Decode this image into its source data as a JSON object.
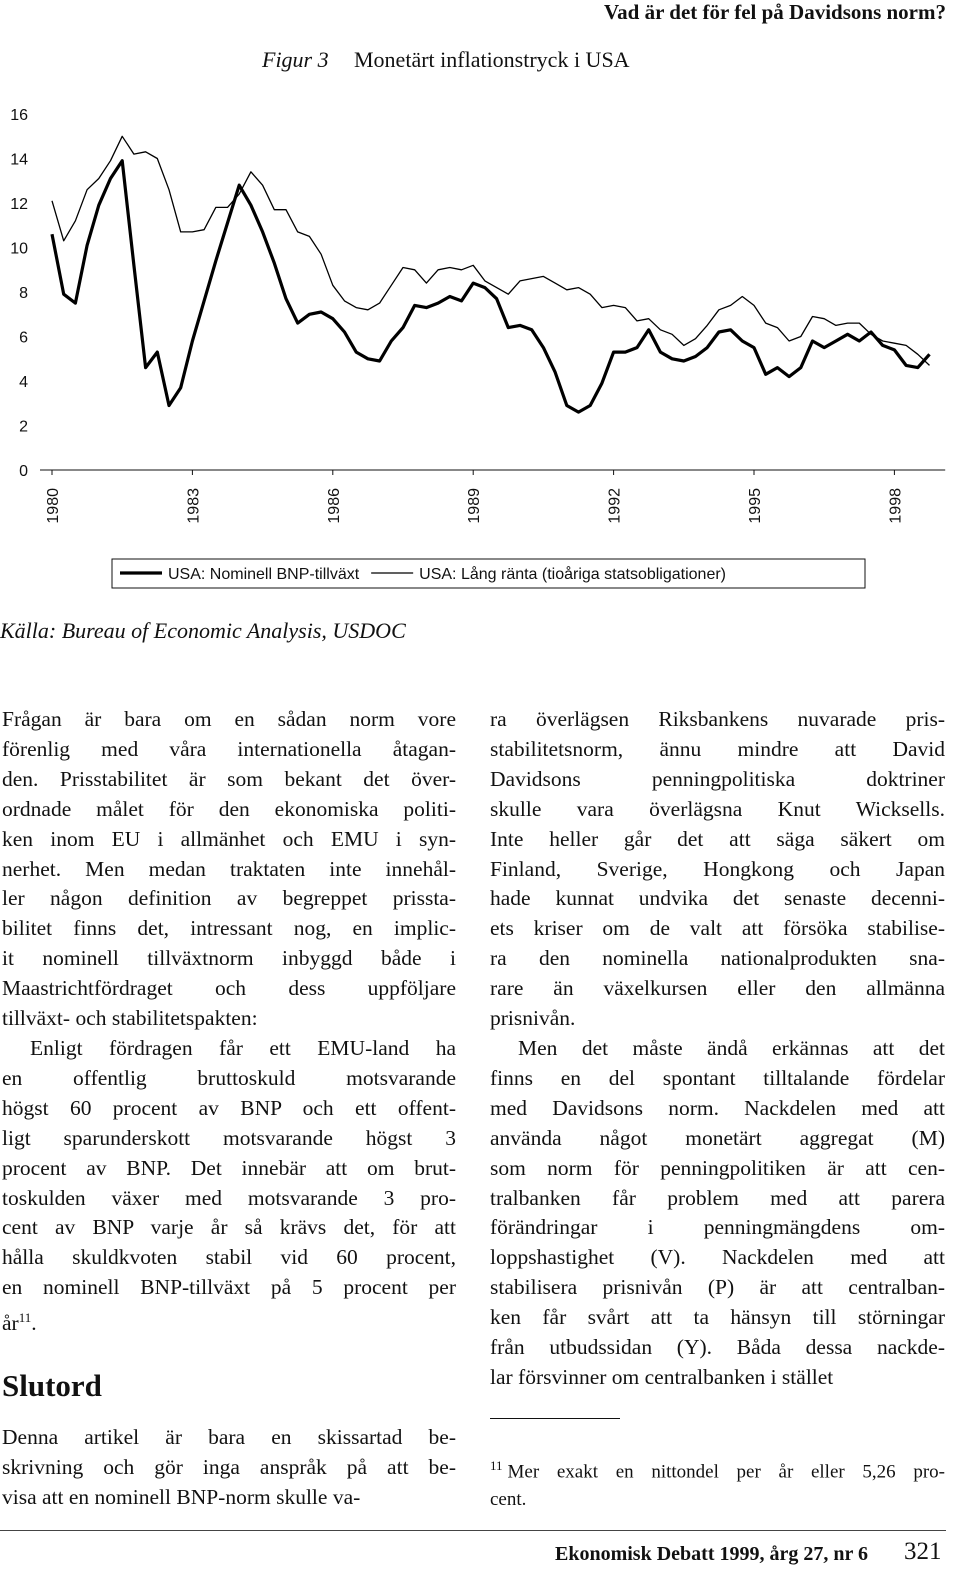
{
  "header": {
    "running_title": "Vad är det för fel på Davidsons norm?",
    "footer_journal": "Ekonomisk Debatt 1999, årg 27, nr 6",
    "page_number": "321"
  },
  "figure": {
    "label": "Figur 3",
    "source": "Källa: Bureau of Economic Analysis, USDOC"
  },
  "chart_data": {
    "type": "line",
    "title": "Monetärt inflationstryck i USA",
    "x": [
      1980,
      1980.25,
      1980.5,
      1980.75,
      1981,
      1981.25,
      1981.5,
      1981.75,
      1982,
      1982.25,
      1982.5,
      1982.75,
      1983,
      1983.25,
      1983.5,
      1983.75,
      1984,
      1984.25,
      1984.5,
      1984.75,
      1985,
      1985.25,
      1985.5,
      1985.75,
      1986,
      1986.25,
      1986.5,
      1986.75,
      1987,
      1987.25,
      1987.5,
      1987.75,
      1988,
      1988.25,
      1988.5,
      1988.75,
      1989,
      1989.25,
      1989.5,
      1989.75,
      1990,
      1990.25,
      1990.5,
      1990.75,
      1991,
      1991.25,
      1991.5,
      1991.75,
      1992,
      1992.25,
      1992.5,
      1992.75,
      1993,
      1993.25,
      1993.5,
      1993.75,
      1994,
      1994.25,
      1994.5,
      1994.75,
      1995,
      1995.25,
      1995.5,
      1995.75,
      1996,
      1996.25,
      1996.5,
      1996.75,
      1997,
      1997.25,
      1997.5,
      1997.75,
      1998,
      1998.25,
      1998.5,
      1998.75
    ],
    "series": [
      {
        "name": "USA: Nominell BNP-tillväxt",
        "color": "#000000",
        "line_width": 3.2,
        "values": [
          10.6,
          7.9,
          7.5,
          10.1,
          11.9,
          13.1,
          13.9,
          9.2,
          4.6,
          5.3,
          2.9,
          3.7,
          5.8,
          7.6,
          9.4,
          11.1,
          12.8,
          11.9,
          10.7,
          9.3,
          7.7,
          6.6,
          7.0,
          7.1,
          6.8,
          6.2,
          5.3,
          5.0,
          4.9,
          5.8,
          6.4,
          7.4,
          7.3,
          7.5,
          7.8,
          7.6,
          8.4,
          8.2,
          7.7,
          6.4,
          6.5,
          6.3,
          5.5,
          4.4,
          2.9,
          2.6,
          2.9,
          3.9,
          5.3,
          5.3,
          5.5,
          6.3,
          5.3,
          5.0,
          4.9,
          5.1,
          5.5,
          6.2,
          6.3,
          5.8,
          5.5,
          4.3,
          4.6,
          4.2,
          4.6,
          5.8,
          5.5,
          5.8,
          6.1,
          5.8,
          6.2,
          5.6,
          5.4,
          4.7,
          4.6,
          5.2
        ]
      },
      {
        "name": "USA: Lång ränta (tioåriga statsobligationer)",
        "color": "#000000",
        "line_width": 1.3,
        "values": [
          12.1,
          10.3,
          11.2,
          12.6,
          13.1,
          13.9,
          15.0,
          14.2,
          14.3,
          14.0,
          12.6,
          10.7,
          10.7,
          10.8,
          11.8,
          11.8,
          12.4,
          13.4,
          12.8,
          11.7,
          11.7,
          10.7,
          10.5,
          9.7,
          8.3,
          7.6,
          7.3,
          7.2,
          7.5,
          8.3,
          9.1,
          9.0,
          8.4,
          9.0,
          9.1,
          9.0,
          9.2,
          8.5,
          8.2,
          7.9,
          8.5,
          8.6,
          8.7,
          8.4,
          8.1,
          8.2,
          7.9,
          7.3,
          7.4,
          7.3,
          6.7,
          6.8,
          6.3,
          6.1,
          5.6,
          5.9,
          6.5,
          7.2,
          7.4,
          7.8,
          7.4,
          6.6,
          6.4,
          5.8,
          6.0,
          6.9,
          6.8,
          6.5,
          6.6,
          6.6,
          6.1,
          5.8,
          5.7,
          5.6,
          5.2,
          4.7
        ]
      }
    ],
    "xlim": [
      1980,
      1999
    ],
    "xticks": [
      1980,
      1983,
      1986,
      1989,
      1992,
      1995,
      1998
    ],
    "ylim": [
      0,
      16
    ],
    "yticks": [
      0,
      2,
      4,
      6,
      8,
      10,
      12,
      14,
      16
    ],
    "grid": false,
    "legend": "bottom"
  },
  "left_column": {
    "paragraphs": [
      {
        "lines": [
          "Frågan är bara om en sådan norm vore",
          "förenlig med våra internationella åtagan-",
          "den. Prisstabilitet är som bekant det över-",
          "ordnade målet för den ekonomiska politi-",
          "ken inom EU i allmänhet och EMU i syn-",
          "nerhet. Men medan traktaten inte innehål-",
          "ler någon definition av begreppet prissta-",
          "bilitet finns det, intressant nog, en implic-",
          "it nominell tillväxtnorm inbyggd både i",
          "Maastrichtfördraget och dess uppföljare",
          "tillväxt- och stabilitetspakten:"
        ]
      },
      {
        "lines": [
          "Enligt fördragen får ett EMU-land ha",
          "en offentlig bruttoskuld motsvarande",
          "högst 60 procent av BNP och ett offent-",
          "ligt sparunderskott motsvarande högst 3",
          "procent av BNP. Det innebär att om brut-",
          "toskulden växer med motsvarande 3 pro-",
          "cent av BNP varje år så krävs det, för att",
          "hålla skuldkvoten stabil vid 60 procent,",
          "en nominell BNP-tillväxt på 5 procent per",
          "år"
        ],
        "footnote_ref": "11",
        "after_ref": "."
      }
    ],
    "heading": "Slutord",
    "paragraphs_after": [
      {
        "lines": [
          "Denna artikel är bara en skissartad be-",
          "skrivning och gör inga anspråk på att be-",
          "visa att en nominell BNP-norm skulle va-"
        ]
      }
    ]
  },
  "right_column": {
    "paragraphs": [
      {
        "lines": [
          "ra överlägsen Riksbankens nuvarade pris-",
          "stabilitetsnorm, ännu mindre att David",
          "Davidsons penningpolitiska doktriner",
          "skulle vara överlägsna Knut Wicksells.",
          "Inte heller går det att säga säkert om",
          "Finland, Sverige, Hongkong och Japan",
          "hade kunnat undvika det senaste decenni-",
          "ets kriser om de valt att försöka stabilise-",
          "ra den nominella nationalprodukten sna-",
          "rare än växelkursen eller den allmänna",
          "prisnivån."
        ]
      },
      {
        "lines": [
          "Men det måste ändå erkännas att det",
          "finns en del spontant tilltalande fördelar",
          "med Davidsons norm. Nackdelen med att",
          "använda något monetärt aggregat (M)",
          "som norm för penningpolitiken är att cen-",
          "tralbanken får problem med att parera",
          "förändringar i penningmängdens om-",
          "loppshastighet (V). Nackdelen med att",
          "stabilisera prisnivån (P) är att centralban-",
          "ken får svårt att ta hänsyn till störningar",
          "från utbudssidan (Y). Båda dessa nackde-",
          "lar försvinner om centralbanken i stället"
        ]
      }
    ],
    "footnote": {
      "number": "11",
      "lines": [
        "Mer exakt en nittondel per år eller 5,26 pro-",
        "cent."
      ]
    }
  }
}
